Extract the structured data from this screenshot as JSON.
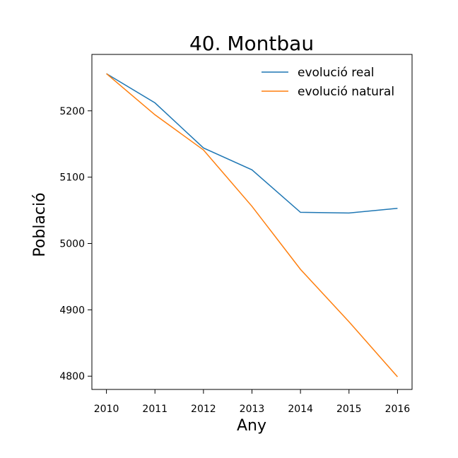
{
  "chart_data": {
    "type": "line",
    "title": "40. Montbau",
    "xlabel": "Any",
    "ylabel": "Població",
    "x": [
      2010,
      2011,
      2012,
      2013,
      2014,
      2015,
      2016
    ],
    "xticks": [
      "2010",
      "2011",
      "2012",
      "2013",
      "2014",
      "2015",
      "2016"
    ],
    "yticks": [
      4800,
      4900,
      5000,
      5100,
      5200
    ],
    "ylim": [
      4780,
      5285
    ],
    "xlim": [
      2009.7,
      2016.3
    ],
    "grid": false,
    "legend_position": "top-right",
    "series": [
      {
        "name": "evolució real",
        "color": "#1f77b4",
        "values": [
          5256,
          5212,
          5144,
          5111,
          5047,
          5046,
          5053
        ]
      },
      {
        "name": "evolució natural",
        "color": "#ff7f0e",
        "values": [
          5256,
          5194,
          5141,
          5056,
          4961,
          4882,
          4799
        ]
      }
    ]
  }
}
